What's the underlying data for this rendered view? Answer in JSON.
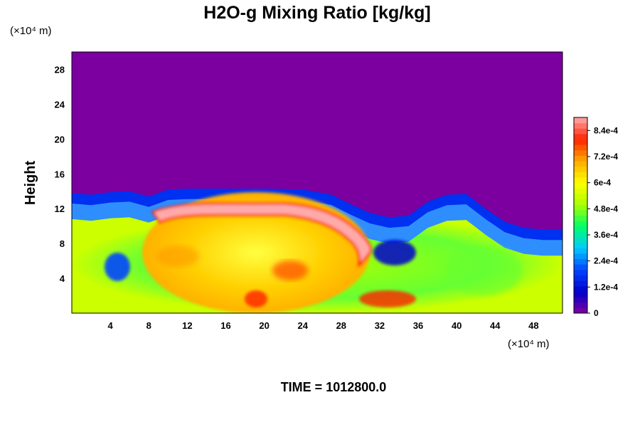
{
  "chart_data": {
    "type": "heatmap",
    "title": "H2O-g Mixing Ratio [kg/kg]",
    "ylabel": "Height",
    "y_unit_label": "(×10⁴ m)",
    "x_unit_label": "(×10⁴ m)",
    "xlim": [
      0,
      51
    ],
    "ylim": [
      0,
      30
    ],
    "x_ticks": [
      4,
      8,
      12,
      16,
      20,
      24,
      28,
      32,
      36,
      40,
      44,
      48
    ],
    "y_ticks": [
      4,
      8,
      12,
      16,
      20,
      24,
      28
    ],
    "colorbar": {
      "min": 0,
      "max": 0.0009,
      "tick_values": [
        0,
        0.00012,
        0.00024,
        0.00036,
        0.00048,
        0.0006,
        0.00072,
        0.00084
      ],
      "tick_labels": [
        "0",
        "1.2e-4",
        "2.4e-4",
        "3.6e-4",
        "4.8e-4",
        "6e-4",
        "7.2e-4",
        "8.4e-4"
      ]
    },
    "moist_layer_top": [
      [
        0,
        13.8
      ],
      [
        2,
        13.6
      ],
      [
        4,
        13.9
      ],
      [
        6,
        14
      ],
      [
        8,
        13.4
      ],
      [
        10,
        14.2
      ],
      [
        12,
        14.3
      ],
      [
        16,
        14.3
      ],
      [
        20,
        14.3
      ],
      [
        24,
        14.2
      ],
      [
        27,
        13.6
      ],
      [
        29,
        12.5
      ],
      [
        31,
        11.5
      ],
      [
        33,
        11
      ],
      [
        35,
        11.2
      ],
      [
        37,
        12.8
      ],
      [
        39,
        13.6
      ],
      [
        41,
        13.7
      ],
      [
        43,
        12
      ],
      [
        45,
        10.5
      ],
      [
        47,
        9.8
      ],
      [
        49,
        9.6
      ],
      [
        51,
        9.6
      ]
    ],
    "time_label": "TIME = 1012800.0"
  },
  "colors": {
    "background": "#7b009f",
    "colorbar_stops": [
      "#8000a0",
      "#0000cc",
      "#0044ff",
      "#00ccff",
      "#00ff66",
      "#aaff00",
      "#ffff00",
      "#ffaa00",
      "#ff2200",
      "#ffaaaa"
    ]
  }
}
